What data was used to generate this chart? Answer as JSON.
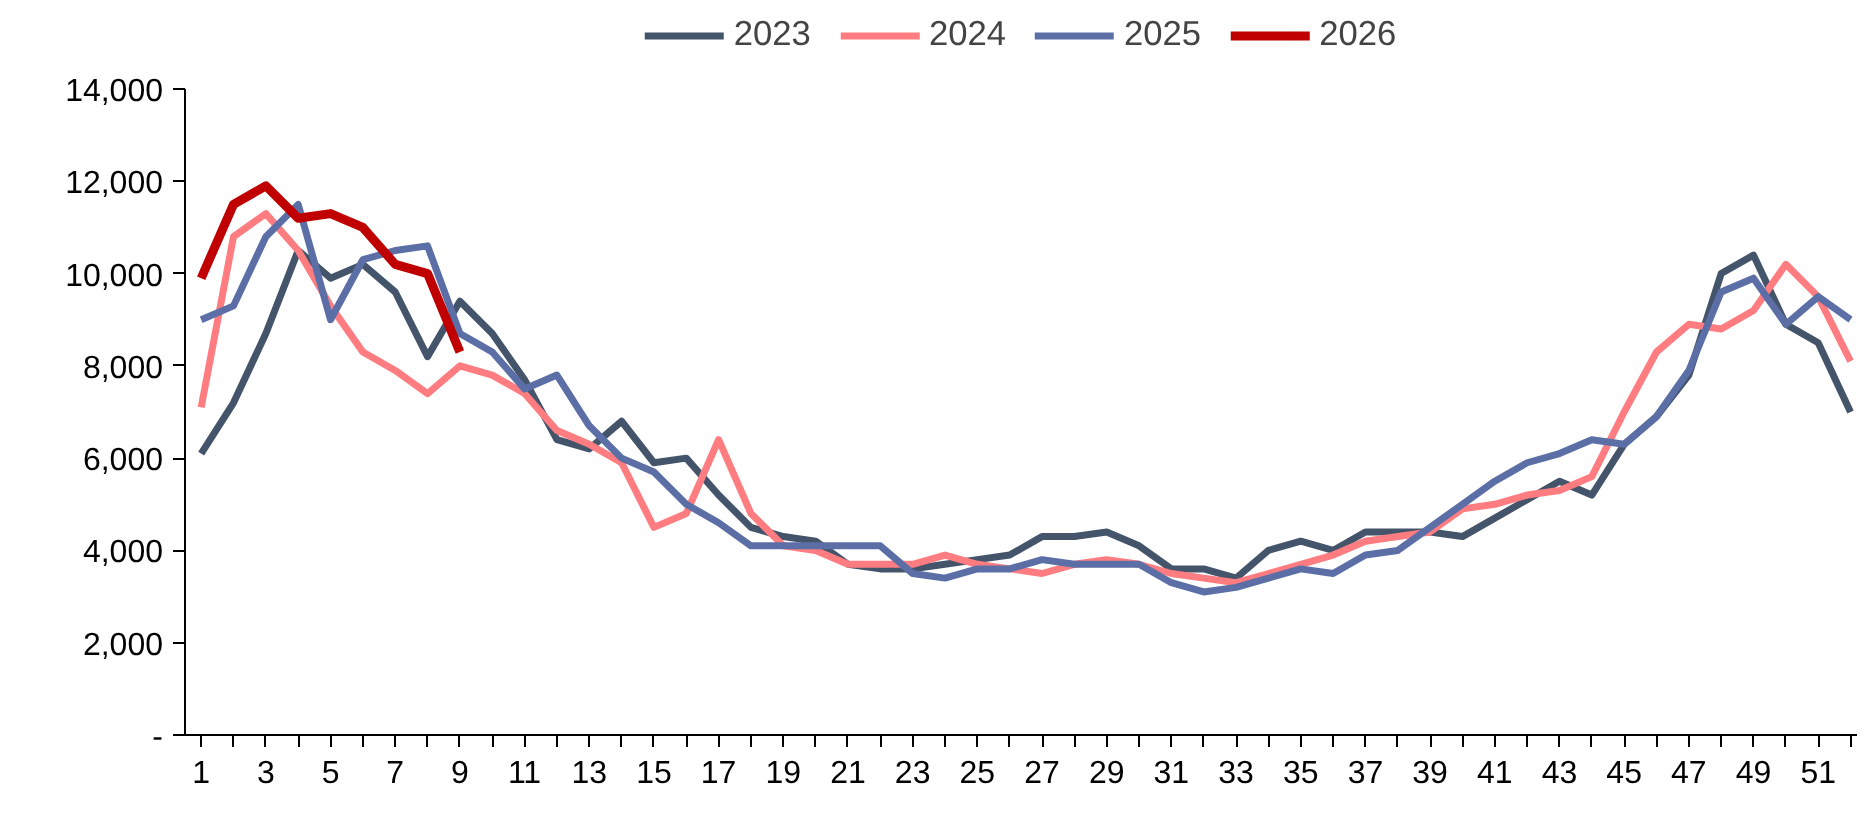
{
  "chart_data": {
    "type": "line",
    "x": [
      1,
      2,
      3,
      4,
      5,
      6,
      7,
      8,
      9,
      10,
      11,
      12,
      13,
      14,
      15,
      16,
      17,
      18,
      19,
      20,
      21,
      22,
      23,
      24,
      25,
      26,
      27,
      28,
      29,
      30,
      31,
      32,
      33,
      34,
      35,
      36,
      37,
      38,
      39,
      40,
      41,
      42,
      43,
      44,
      45,
      46,
      47,
      48,
      49,
      50,
      51,
      52
    ],
    "series": [
      {
        "name": "2023",
        "color": "#44546a",
        "values": [
          6100,
          7200,
          8700,
          10500,
          9900,
          10200,
          9600,
          8200,
          9400,
          8700,
          7700,
          6400,
          6200,
          6800,
          5900,
          6000,
          5200,
          4500,
          4300,
          4200,
          3700,
          3600,
          3600,
          3700,
          3800,
          3900,
          4300,
          4300,
          4400,
          4100,
          3600,
          3600,
          3400,
          4000,
          4200,
          4000,
          4400,
          4400,
          4400,
          4300,
          4700,
          5100,
          5500,
          5200,
          6300,
          6900,
          7800,
          10000,
          10400,
          8900,
          8500,
          7000
        ]
      },
      {
        "name": "2024",
        "color": "#ff7c80",
        "values": [
          7100,
          10800,
          11300,
          10500,
          9300,
          8300,
          7900,
          7400,
          8000,
          7800,
          7400,
          6600,
          6300,
          5900,
          4500,
          4800,
          6400,
          4800,
          4100,
          4000,
          3700,
          3700,
          3700,
          3900,
          3700,
          3600,
          3500,
          3700,
          3800,
          3700,
          3500,
          3400,
          3300,
          3500,
          3700,
          3900,
          4200,
          4300,
          4400,
          4900,
          5000,
          5200,
          5300,
          5600,
          7000,
          8300,
          8900,
          8800,
          9200,
          10200,
          9500,
          8100
        ]
      },
      {
        "name": "2025",
        "color": "#5b6fa6",
        "values": [
          9000,
          9300,
          10800,
          11500,
          9000,
          10300,
          10500,
          10600,
          8700,
          8300,
          7500,
          7800,
          6700,
          6000,
          5700,
          5000,
          4600,
          4100,
          4100,
          4100,
          4100,
          4100,
          3500,
          3400,
          3600,
          3600,
          3800,
          3700,
          3700,
          3700,
          3300,
          3100,
          3200,
          3400,
          3600,
          3500,
          3900,
          4000,
          4500,
          5000,
          5500,
          5900,
          6100,
          6400,
          6300,
          6900,
          7900,
          9600,
          9900,
          8900,
          9500,
          9000
        ]
      },
      {
        "name": "2026",
        "color": "#c00000",
        "values": [
          9900,
          11500,
          11900,
          11200,
          11300,
          11000,
          10200,
          10000,
          8300,
          null,
          null,
          null,
          null,
          null,
          null,
          null,
          null,
          null,
          null,
          null,
          null,
          null,
          null,
          null,
          null,
          null,
          null,
          null,
          null,
          null,
          null,
          null,
          null,
          null,
          null,
          null,
          null,
          null,
          null,
          null,
          null,
          null,
          null,
          null,
          null,
          null,
          null,
          null,
          null,
          null,
          null,
          null
        ]
      }
    ],
    "xlim": [
      0.5,
      52.2
    ],
    "xticks": [
      1,
      {
        "value": 2,
        "label": null
      },
      3,
      {
        "value": 4,
        "label": null
      },
      5,
      {
        "value": 6,
        "label": null
      },
      7,
      {
        "value": 8,
        "label": null
      },
      9,
      {
        "value": 10,
        "label": null
      },
      11,
      {
        "value": 12,
        "label": null
      },
      13,
      {
        "value": 14,
        "label": null
      },
      15,
      {
        "value": 16,
        "label": null
      },
      17,
      {
        "value": 18,
        "label": null
      },
      19,
      {
        "value": 20,
        "label": null
      },
      21,
      {
        "value": 22,
        "label": null
      },
      23,
      {
        "value": 24,
        "label": null
      },
      25,
      {
        "value": 26,
        "label": null
      },
      27,
      {
        "value": 28,
        "label": null
      },
      29,
      {
        "value": 30,
        "label": null
      },
      31,
      {
        "value": 32,
        "label": null
      },
      33,
      {
        "value": 34,
        "label": null
      },
      35,
      {
        "value": 36,
        "label": null
      },
      37,
      {
        "value": 38,
        "label": null
      },
      39,
      {
        "value": 40,
        "label": null
      },
      41,
      {
        "value": 42,
        "label": null
      },
      43,
      {
        "value": 44,
        "label": null
      },
      45,
      {
        "value": 46,
        "label": null
      },
      47,
      {
        "value": 48,
        "label": null
      },
      49,
      {
        "value": 50,
        "label": null
      },
      51,
      {
        "value": 52,
        "label": null
      }
    ],
    "ylim": [
      0,
      14000
    ],
    "yticks": [
      {
        "value": 0,
        "label": "-"
      },
      {
        "value": 2000,
        "label": "2,000"
      },
      {
        "value": 4000,
        "label": "4,000"
      },
      {
        "value": 6000,
        "label": "6,000"
      },
      {
        "value": 8000,
        "label": "8,000"
      },
      {
        "value": 10000,
        "label": "10,000"
      },
      {
        "value": 12000,
        "label": "12,000"
      },
      {
        "value": 14000,
        "label": "14,000"
      }
    ],
    "grid": false,
    "legend": "top",
    "marker": "none",
    "line_style": "solid"
  }
}
